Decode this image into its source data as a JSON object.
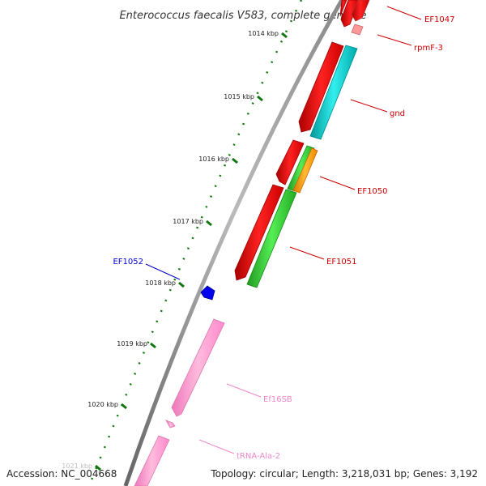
{
  "title": "Enterococcus faecalis V583, complete genome",
  "footer": {
    "accession": "Accession: NC_004668",
    "summary": "Topology: circular; Length: 3,218,031 bp; Genes: 3,192"
  },
  "ticks": [
    "1014 kbp",
    "1015 kbp",
    "1016 kbp",
    "1017 kbp",
    "1018 kbp",
    "1019 kbp",
    "1020 kbp",
    "1021 kbp"
  ],
  "genes": [
    {
      "name": "EF1047",
      "color": "#cc0000"
    },
    {
      "name": "rpmF-3",
      "color": "#cc0000"
    },
    {
      "name": "gnd",
      "color": "#cc0000"
    },
    {
      "name": "EF1050",
      "color": "#cc0000"
    },
    {
      "name": "EF1051",
      "color": "#cc0000"
    },
    {
      "name": "EF1052",
      "color": "#0000cc"
    },
    {
      "name": "Ef16SB",
      "color": "#ee88cc"
    },
    {
      "name": "tRNA-Ala-2",
      "color": "#ee88cc"
    }
  ],
  "colors": {
    "backbone": "#888888",
    "cds_forward": "#ee0000",
    "cds_reverse_gnd": "#00cccc",
    "cds_green": "#33cc33",
    "cds_orange": "#ff9900",
    "cds_blue": "#0000ee",
    "rrna": "#ff99cc",
    "ticks": "#117711"
  }
}
